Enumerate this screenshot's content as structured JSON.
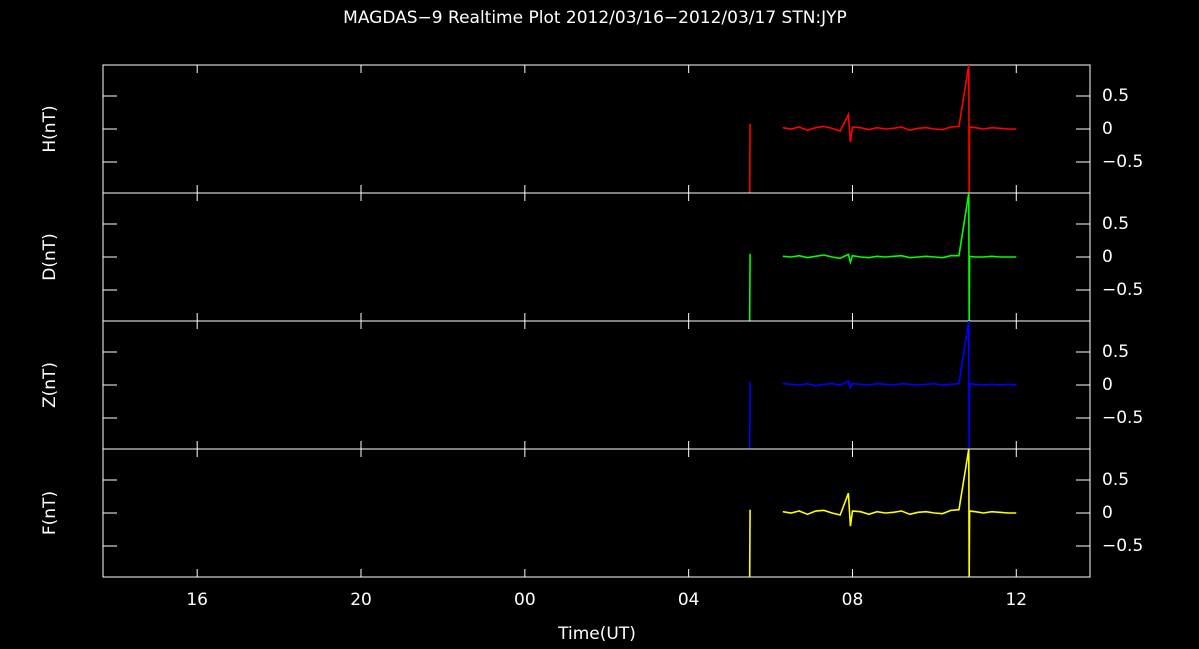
{
  "chart_data": {
    "type": "line",
    "title": "MAGDAS−9 Realtime Plot 2012/03/16−2012/03/17 STN:JYP",
    "xlabel": "Time(UT)",
    "xlim": [
      13.7,
      37.8
    ],
    "xticks": [
      16,
      20,
      {
        "value": 24,
        "label": "00"
      },
      {
        "value": 28,
        "label": "04"
      },
      {
        "value": 32,
        "label": "08"
      },
      {
        "value": 36,
        "label": "12"
      }
    ],
    "ylim": [
      -0.97,
      0.97
    ],
    "yticks": [
      0.5,
      0,
      {
        "value": -0.5,
        "label": "−0.5"
      }
    ],
    "x": [
      29.49,
      29.5,
      29.52,
      30.3,
      30.5,
      30.7,
      30.9,
      31.1,
      31.3,
      31.5,
      31.7,
      31.9,
      31.95,
      32.0,
      32.2,
      32.4,
      32.6,
      32.8,
      33.0,
      33.2,
      33.4,
      33.6,
      33.8,
      34.0,
      34.2,
      34.4,
      34.6,
      34.84,
      34.85,
      34.86,
      35.0,
      35.2,
      35.4,
      35.6,
      35.8,
      36.0
    ],
    "series": [
      {
        "name": "H(nT)",
        "color": "#ff0000",
        "values": [
          -0.97,
          0.08,
          null,
          0.02,
          0.0,
          0.03,
          -0.02,
          0.02,
          0.04,
          0.01,
          -0.03,
          0.22,
          -0.2,
          0.03,
          0.02,
          -0.01,
          0.02,
          0.0,
          0.01,
          0.03,
          -0.02,
          0.01,
          0.02,
          0.0,
          -0.01,
          0.03,
          0.04,
          0.97,
          -0.97,
          0.03,
          0.02,
          0.0,
          0.02,
          0.01,
          0.0,
          0.0
        ]
      },
      {
        "name": "D(nT)",
        "color": "#00ff00",
        "values": [
          -0.97,
          0.05,
          null,
          0.01,
          0.0,
          0.02,
          -0.01,
          0.01,
          0.03,
          0.0,
          -0.02,
          0.04,
          -0.08,
          0.02,
          0.0,
          -0.01,
          0.01,
          0.0,
          0.01,
          0.02,
          -0.01,
          0.0,
          0.01,
          0.0,
          -0.01,
          0.02,
          0.02,
          0.97,
          -0.97,
          0.01,
          0.0,
          0.0,
          0.01,
          0.0,
          0.0,
          0.0
        ]
      },
      {
        "name": "Z(nT)",
        "color": "#0000ff",
        "values": [
          -0.97,
          0.05,
          null,
          0.02,
          0.01,
          0.0,
          0.02,
          -0.01,
          0.01,
          0.02,
          0.0,
          0.06,
          -0.04,
          0.02,
          0.01,
          0.0,
          0.02,
          0.01,
          0.0,
          0.02,
          0.01,
          0.0,
          0.01,
          0.02,
          0.0,
          0.01,
          0.02,
          0.97,
          -0.97,
          0.02,
          0.01,
          0.0,
          0.01,
          0.0,
          0.01,
          0.0
        ]
      },
      {
        "name": "F(nT)",
        "color": "#ffff00",
        "values": [
          -0.97,
          0.05,
          null,
          0.02,
          0.0,
          0.03,
          -0.02,
          0.03,
          0.04,
          0.0,
          -0.03,
          0.3,
          -0.2,
          0.03,
          0.02,
          -0.02,
          0.02,
          0.0,
          0.01,
          0.03,
          -0.02,
          0.01,
          0.02,
          0.0,
          -0.01,
          0.04,
          0.05,
          0.97,
          -0.97,
          0.03,
          0.02,
          0.0,
          0.02,
          0.01,
          0.0,
          0.0
        ]
      }
    ]
  }
}
